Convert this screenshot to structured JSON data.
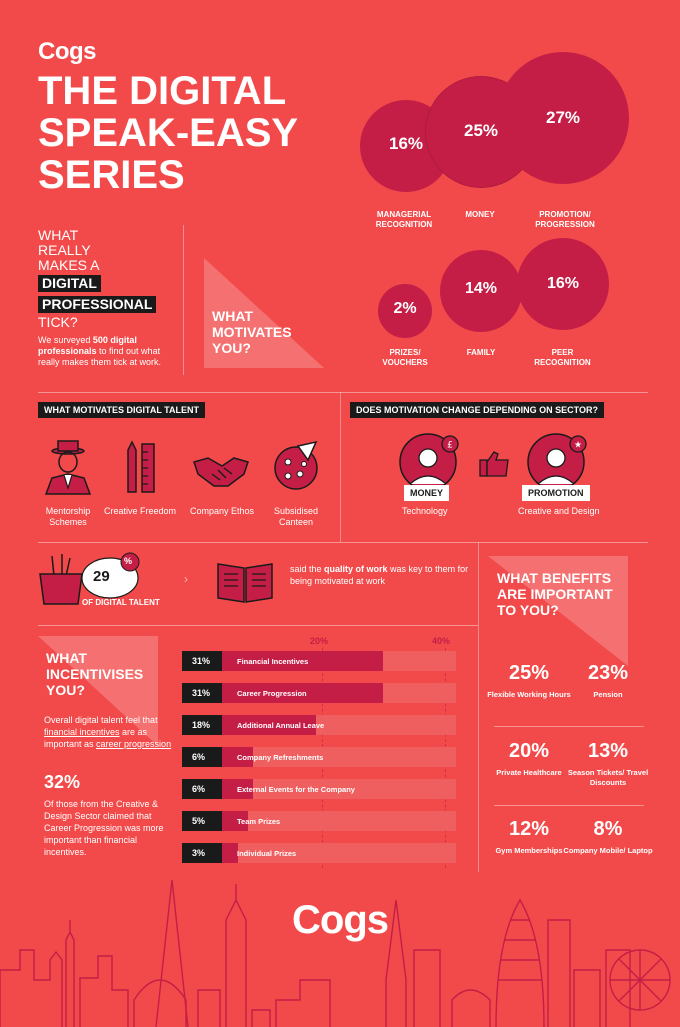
{
  "header": {
    "brand": "Cogs",
    "title_lines": [
      "THE DIGITAL",
      "SPEAK-EASY",
      "SERIES"
    ]
  },
  "intro": {
    "question_before": "WHAT REALLY MAKES A",
    "highlight_1": "DIGITAL",
    "highlight_2": "PROFESSIONAL",
    "question_after": "TICK?",
    "survey_pre": "We surveyed ",
    "survey_bold": "500 digital professionals",
    "survey_post": " to find out what really makes them tick at work.",
    "motivates_label": "WHAT MOTIVATES YOU?"
  },
  "motivators": [
    {
      "pct": "16%",
      "label": "MANAGERIAL RECOGNITION"
    },
    {
      "pct": "25%",
      "label": "MONEY"
    },
    {
      "pct": "27%",
      "label": "PROMOTION/ PROGRESSION"
    },
    {
      "pct": "2%",
      "label": "PRIZES/ VOUCHERS"
    },
    {
      "pct": "14%",
      "label": "FAMILY"
    },
    {
      "pct": "16%",
      "label": "PEER RECOGNITION"
    }
  ],
  "talent_section": {
    "heading": "WHAT MOTIVATES DIGITAL TALENT",
    "items": [
      {
        "label": "Mentorship Schemes",
        "icon": "mentor-icon"
      },
      {
        "label": "Creative Freedom",
        "icon": "ruler-pencil-icon"
      },
      {
        "label": "Company Ethos",
        "icon": "handshake-icon"
      },
      {
        "label": "Subsidised Canteen",
        "icon": "pizza-icon"
      }
    ]
  },
  "sector_section": {
    "heading": "DOES MOTIVATION CHANGE DEPENDING ON SECTOR?",
    "left_badge": "MONEY",
    "left_caption": "Technology",
    "right_badge": "PROMOTION",
    "right_caption": "Creative and Design"
  },
  "quality_stat": {
    "value": "29",
    "unit": "%",
    "caption": "OF DIGITAL TALENT",
    "text_pre": "said the ",
    "text_bold": "quality of work",
    "text_post": " was key to them for being motivated at work"
  },
  "incentives": {
    "heading": "WHAT INCENTIVISES YOU?",
    "desc_pre": "Overall digital talent feel that ",
    "desc_link1": "financial incentives",
    "desc_mid": " are as important as ",
    "desc_link2": "career progression",
    "stat_value": "32%",
    "stat_text": "Of those from the Creative & Design Sector claimed that Career Progression was more important than financial incentives.",
    "axis_ticks": [
      "20%",
      "40%"
    ]
  },
  "chart_data": {
    "type": "bar",
    "orientation": "horizontal",
    "title": "WHAT INCENTIVISES YOU?",
    "categories": [
      "Financial Incentives",
      "Career Progression",
      "Additional Annual Leave",
      "Company Refreshments",
      "External Events for the Company",
      "Team Prizes",
      "Individual Prizes"
    ],
    "values": [
      31,
      31,
      18,
      6,
      6,
      5,
      3
    ],
    "value_labels": [
      "31%",
      "31%",
      "18%",
      "6%",
      "6%",
      "5%",
      "3%"
    ],
    "xlim": [
      0,
      45
    ],
    "x_ticks": [
      20,
      40
    ],
    "bar_color": "#c41e47"
  },
  "benefits": {
    "heading": "WHAT BENEFITS ARE IMPORTANT TO YOU?",
    "items": [
      {
        "pct": "25%",
        "label": "Flexible Working Hours"
      },
      {
        "pct": "23%",
        "label": "Pension"
      },
      {
        "pct": "20%",
        "label": "Private Healthcare"
      },
      {
        "pct": "13%",
        "label": "Season Tickets/ Travel Discounts"
      },
      {
        "pct": "12%",
        "label": "Gym Memberships"
      },
      {
        "pct": "8%",
        "label": "Company Mobile/ Laptop"
      }
    ]
  },
  "footer": {
    "brand": "Cogs"
  },
  "colors": {
    "background": "#f24a4a",
    "accent": "#c41e47",
    "dark": "#1a1a1a"
  }
}
